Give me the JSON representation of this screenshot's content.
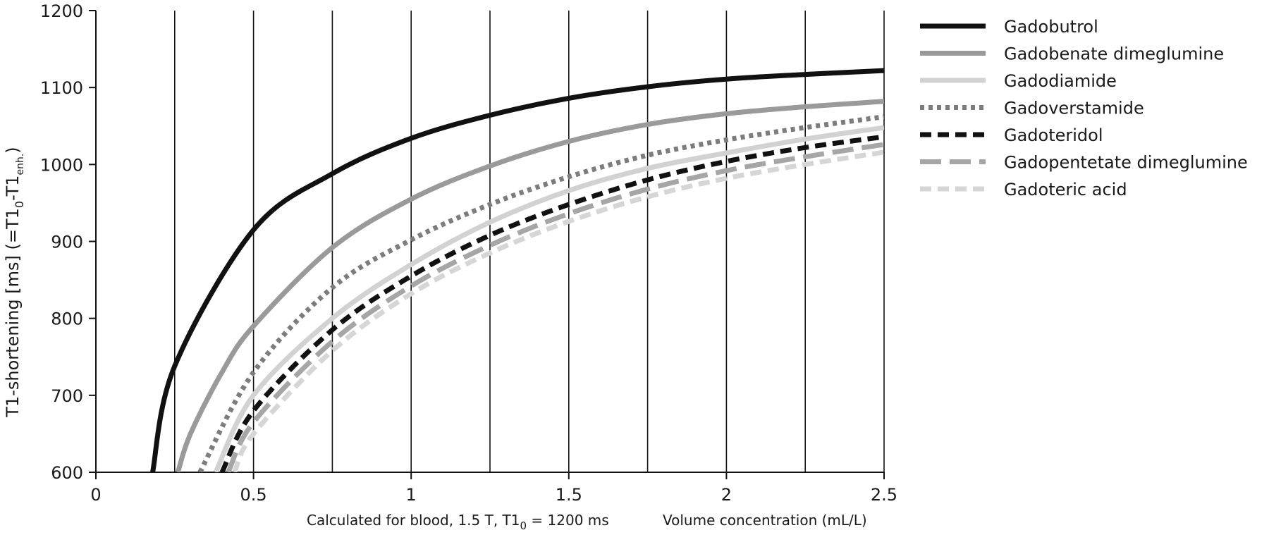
{
  "chart_data": {
    "type": "line",
    "title": "",
    "ylabel": {
      "main": "T1-shortening [ms] (=T1",
      "sub0": "0",
      "mid": "-T1",
      "sub1": "enh.",
      "end": ")"
    },
    "x_note": {
      "left_main": "Calculated for blood, 1.5 T, T1",
      "left_sub": "0",
      "left_end": " = 1200 ms",
      "right": "Volume concentration (mL/L)"
    },
    "xlim": [
      0,
      2.5
    ],
    "ylim": [
      600,
      1200
    ],
    "x_ticks": [
      0,
      0.5,
      1,
      1.5,
      2,
      2.5
    ],
    "x_tick_labels": [
      "0",
      "0.5",
      "1",
      "1.5",
      "2",
      "2.5"
    ],
    "y_ticks": [
      600,
      700,
      800,
      900,
      1000,
      1100,
      1200
    ],
    "y_tick_labels": [
      "600",
      "700",
      "800",
      "900",
      "1000",
      "1100",
      "1200"
    ],
    "vertical_gridlines_x": [
      0.25,
      0.5,
      0.75,
      1,
      1.25,
      1.5,
      1.75,
      2,
      2.25,
      2.5
    ],
    "grid": "vertical only",
    "legend_position": "right",
    "series": [
      {
        "name": "Gadobutrol",
        "color": "#111111",
        "dash": "solid",
        "x": [
          0.18,
          0.25,
          0.5,
          0.75,
          1,
          1.25,
          1.5,
          1.75,
          2,
          2.25,
          2.5
        ],
        "y": [
          600,
          738,
          915,
          988,
          1034,
          1064,
          1086,
          1101,
          1111,
          1117,
          1122
        ]
      },
      {
        "name": "Gadobenate dimeglumine",
        "color": "#9a9a9a",
        "dash": "solid",
        "x": [
          0.26,
          0.3,
          0.4,
          0.5,
          0.75,
          1,
          1.25,
          1.5,
          1.75,
          2,
          2.25,
          2.5
        ],
        "y": [
          600,
          650,
          730,
          790,
          892,
          955,
          998,
          1030,
          1052,
          1066,
          1075,
          1082
        ]
      },
      {
        "name": "Gadodiamide",
        "color": "#d2d2d2",
        "dash": "solid",
        "x": [
          0.38,
          0.5,
          0.75,
          1,
          1.25,
          1.5,
          1.75,
          2,
          2.25,
          2.5
        ],
        "y": [
          600,
          700,
          800,
          870,
          925,
          966,
          995,
          1015,
          1033,
          1048
        ]
      },
      {
        "name": "Gadoverstamide",
        "color": "#7d7d7d",
        "dash": "dotted",
        "x": [
          0.33,
          0.5,
          0.75,
          1,
          1.25,
          1.5,
          1.75,
          2,
          2.25,
          2.5
        ],
        "y": [
          600,
          730,
          840,
          902,
          948,
          984,
          1012,
          1032,
          1048,
          1062
        ]
      },
      {
        "name": "Gadoteridol",
        "color": "#111111",
        "dash": "dashed",
        "x": [
          0.4,
          0.5,
          0.75,
          1,
          1.25,
          1.5,
          1.75,
          2,
          2.25,
          2.5
        ],
        "y": [
          600,
          680,
          785,
          855,
          908,
          948,
          980,
          1004,
          1022,
          1036
        ]
      },
      {
        "name": "Gadopentetate dimeglumine",
        "color": "#a6a6a6",
        "dash": "long-dashed",
        "x": [
          0.42,
          0.5,
          0.75,
          1,
          1.25,
          1.5,
          1.75,
          2,
          2.25,
          2.5
        ],
        "y": [
          600,
          665,
          770,
          842,
          895,
          936,
          968,
          992,
          1010,
          1026
        ]
      },
      {
        "name": "Gadoteric acid",
        "color": "#d6d6d6",
        "dash": "dashed",
        "x": [
          0.44,
          0.5,
          0.75,
          1,
          1.25,
          1.5,
          1.75,
          2,
          2.25,
          2.5
        ],
        "y": [
          600,
          650,
          758,
          832,
          885,
          926,
          958,
          982,
          1000,
          1016
        ]
      }
    ]
  }
}
